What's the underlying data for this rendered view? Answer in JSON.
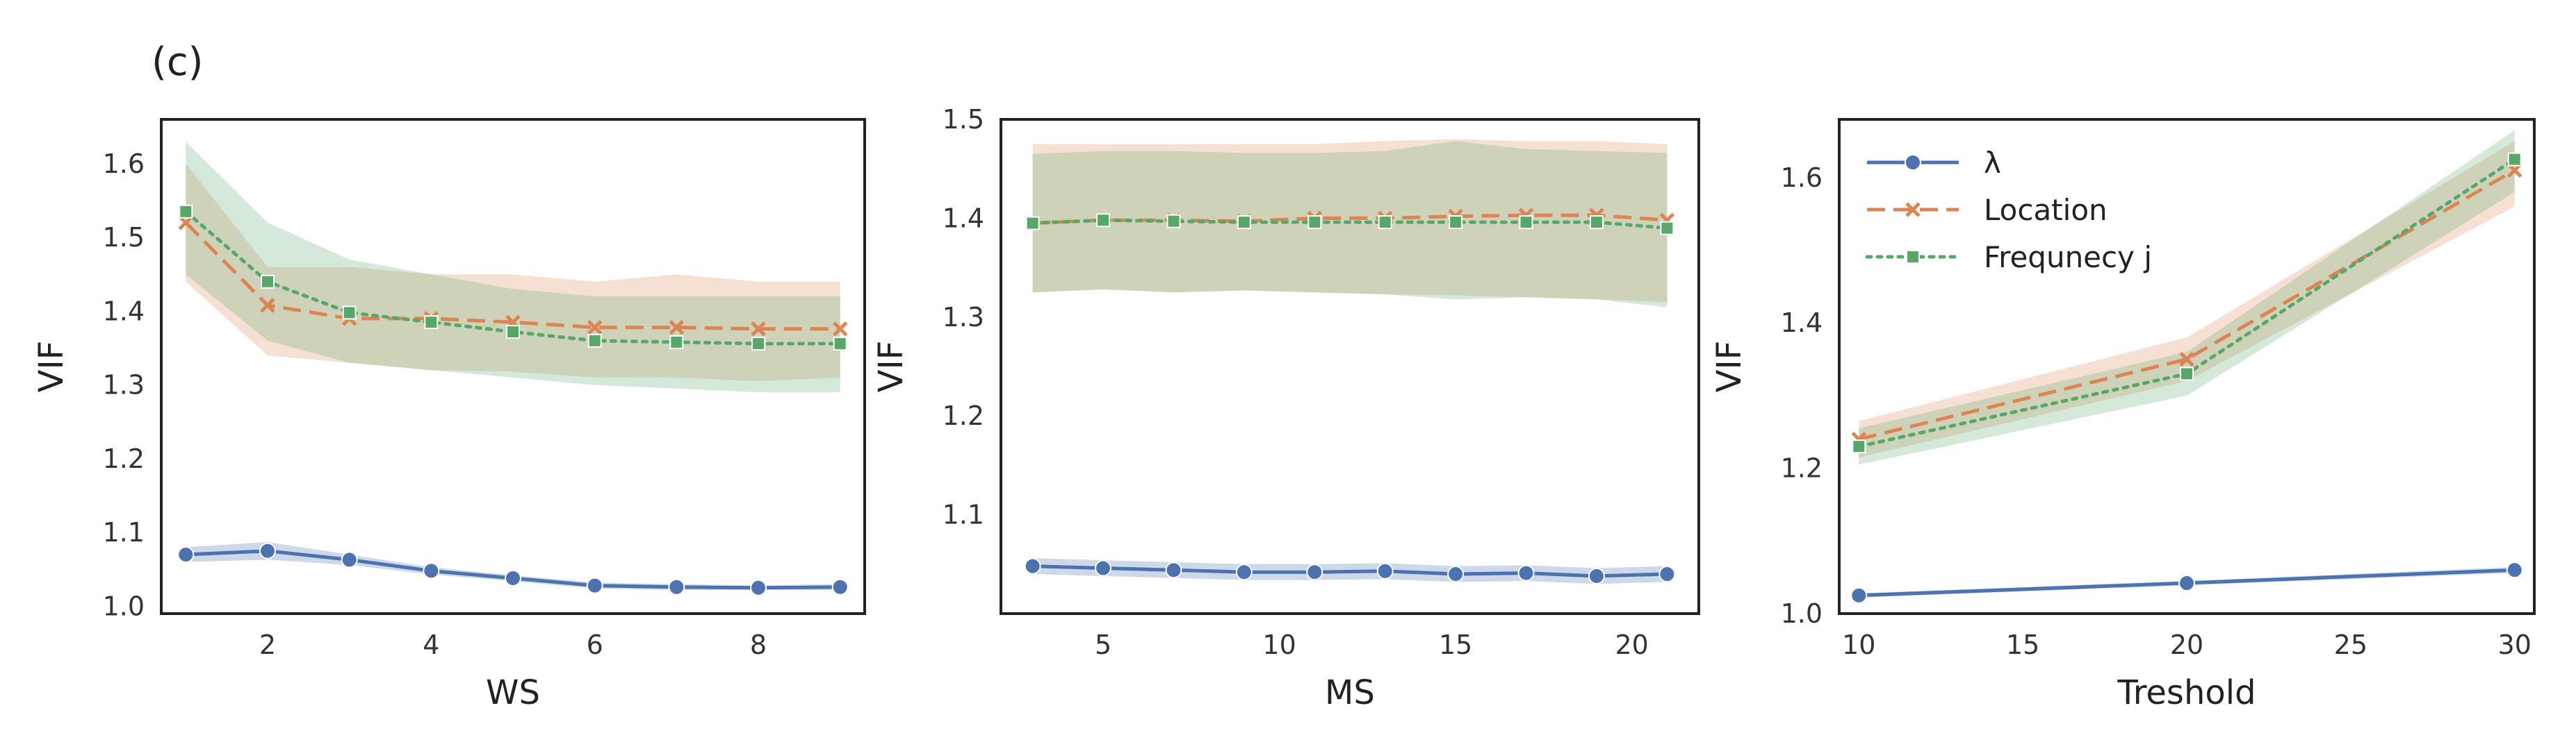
{
  "figure": {
    "panel_label": "(c)"
  },
  "colors": {
    "lambda": "#4c72b0",
    "location": "#dd8452",
    "frequency": "#55a868"
  },
  "chart_data": [
    {
      "type": "line",
      "xlabel": "WS",
      "ylabel": "VIF",
      "xlim": [
        0.7,
        9.3
      ],
      "ylim": [
        0.99,
        1.66
      ],
      "xticks": [
        2,
        4,
        6,
        8
      ],
      "yticks": [
        1.0,
        1.1,
        1.2,
        1.3,
        1.4,
        1.5,
        1.6
      ],
      "x": [
        1,
        2,
        3,
        4,
        5,
        6,
        7,
        8,
        9
      ],
      "series": [
        {
          "name": "λ",
          "values": [
            1.07,
            1.075,
            1.063,
            1.048,
            1.038,
            1.028,
            1.026,
            1.025,
            1.026
          ],
          "lower": [
            1.06,
            1.063,
            1.056,
            1.043,
            1.034,
            1.024,
            1.022,
            1.022,
            1.022
          ],
          "upper": [
            1.08,
            1.087,
            1.07,
            1.053,
            1.042,
            1.032,
            1.03,
            1.028,
            1.03
          ]
        },
        {
          "name": "Location",
          "values": [
            1.52,
            1.408,
            1.39,
            1.39,
            1.385,
            1.378,
            1.378,
            1.376,
            1.376
          ],
          "lower": [
            1.44,
            1.34,
            1.33,
            1.32,
            1.318,
            1.31,
            1.31,
            1.305,
            1.31
          ],
          "upper": [
            1.6,
            1.46,
            1.46,
            1.45,
            1.45,
            1.44,
            1.45,
            1.44,
            1.44
          ]
        },
        {
          "name": "Frequnecy j",
          "values": [
            1.535,
            1.44,
            1.398,
            1.385,
            1.372,
            1.36,
            1.358,
            1.356,
            1.356
          ],
          "lower": [
            1.45,
            1.36,
            1.33,
            1.32,
            1.31,
            1.3,
            1.295,
            1.29,
            1.29
          ],
          "upper": [
            1.63,
            1.52,
            1.47,
            1.45,
            1.43,
            1.42,
            1.42,
            1.42,
            1.42
          ]
        }
      ]
    },
    {
      "type": "line",
      "xlabel": "MS",
      "ylabel": "VIF",
      "xlim": [
        2.1,
        21.9
      ],
      "ylim": [
        1.0,
        1.5
      ],
      "xticks": [
        5,
        10,
        15,
        20
      ],
      "yticks": [
        1.1,
        1.2,
        1.3,
        1.4,
        1.5
      ],
      "x": [
        3,
        5,
        7,
        9,
        11,
        13,
        15,
        17,
        19,
        21
      ],
      "series": [
        {
          "name": "λ",
          "values": [
            1.048,
            1.046,
            1.044,
            1.042,
            1.042,
            1.043,
            1.04,
            1.041,
            1.038,
            1.04
          ],
          "lower": [
            1.04,
            1.038,
            1.036,
            1.034,
            1.034,
            1.035,
            1.032,
            1.033,
            1.03,
            1.032
          ],
          "upper": [
            1.056,
            1.054,
            1.052,
            1.05,
            1.05,
            1.051,
            1.048,
            1.049,
            1.046,
            1.048
          ]
        },
        {
          "name": "Location",
          "values": [
            1.395,
            1.398,
            1.398,
            1.397,
            1.4,
            1.4,
            1.402,
            1.403,
            1.403,
            1.398
          ],
          "lower": [
            1.325,
            1.328,
            1.325,
            1.327,
            1.325,
            1.323,
            1.322,
            1.32,
            1.318,
            1.315
          ],
          "upper": [
            1.475,
            1.475,
            1.475,
            1.475,
            1.475,
            1.478,
            1.48,
            1.478,
            1.478,
            1.475
          ]
        },
        {
          "name": "Frequnecy j",
          "values": [
            1.395,
            1.398,
            1.397,
            1.396,
            1.396,
            1.396,
            1.396,
            1.396,
            1.396,
            1.39
          ],
          "lower": [
            1.325,
            1.328,
            1.325,
            1.327,
            1.325,
            1.323,
            1.318,
            1.32,
            1.318,
            1.31
          ],
          "upper": [
            1.465,
            1.468,
            1.468,
            1.466,
            1.466,
            1.468,
            1.478,
            1.47,
            1.468,
            1.466
          ]
        }
      ]
    },
    {
      "type": "line",
      "xlabel": "Treshold",
      "ylabel": "VIF",
      "xlim": [
        9.4,
        30.6
      ],
      "ylim": [
        1.0,
        1.68
      ],
      "xticks": [
        10,
        15,
        20,
        25,
        30
      ],
      "yticks": [
        1.0,
        1.2,
        1.4,
        1.6
      ],
      "x": [
        10,
        20,
        30
      ],
      "legend": "top-left",
      "series": [
        {
          "name": "λ",
          "values": [
            1.025,
            1.042,
            1.06
          ],
          "lower": [
            1.022,
            1.039,
            1.056
          ],
          "upper": [
            1.028,
            1.045,
            1.064
          ]
        },
        {
          "name": "Location",
          "values": [
            1.24,
            1.35,
            1.61
          ],
          "lower": [
            1.215,
            1.32,
            1.56
          ],
          "upper": [
            1.265,
            1.38,
            1.65
          ]
        },
        {
          "name": "Frequnecy j",
          "values": [
            1.23,
            1.33,
            1.625
          ],
          "lower": [
            1.205,
            1.3,
            1.58
          ],
          "upper": [
            1.255,
            1.36,
            1.665
          ]
        }
      ]
    }
  ]
}
